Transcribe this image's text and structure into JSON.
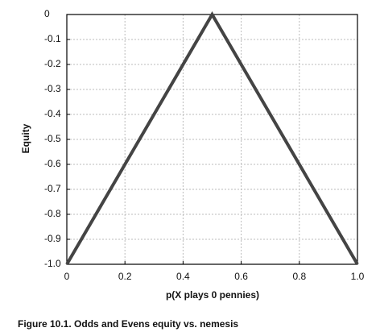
{
  "chart_data": {
    "type": "line",
    "title": "Figure 10.1. Odds and Evens equity vs. nemesis",
    "xlabel": "p(X plays 0 pennies)",
    "ylabel": "Equity",
    "x": [
      0,
      0.5,
      1
    ],
    "values": [
      -1,
      0,
      -1
    ],
    "color": "#444444",
    "xlim": [
      0,
      1
    ],
    "ylim": [
      -1,
      0
    ],
    "xticks": [
      0,
      0.2,
      0.4,
      0.6,
      0.8,
      {
        "value": 1,
        "label": "1.0"
      }
    ],
    "yticks": [
      0,
      -0.1,
      -0.2,
      -0.3,
      -0.4,
      -0.5,
      -0.6,
      -0.7,
      -0.8,
      -0.9,
      {
        "value": -1,
        "label": "-1.0"
      }
    ],
    "grid": true
  }
}
